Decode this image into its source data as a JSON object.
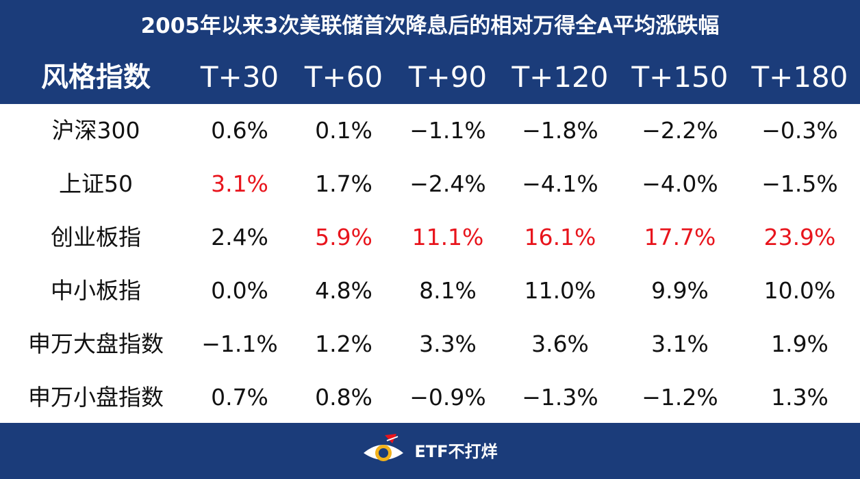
{
  "title": "2005年以来3次美联储首次降息后的相对万得全A平均涨跌幅",
  "table": {
    "columns": [
      "风格指数",
      "T+30",
      "T+60",
      "T+90",
      "T+120",
      "T+150",
      "T+180"
    ],
    "rows": [
      {
        "name": "沪深300",
        "values": [
          "0.6%",
          "0.1%",
          "−1.1%",
          "−1.8%",
          "−2.2%",
          "−0.3%"
        ],
        "highlight": [
          false,
          false,
          false,
          false,
          false,
          false
        ]
      },
      {
        "name": "上证50",
        "values": [
          "3.1%",
          "1.7%",
          "−2.4%",
          "−4.1%",
          "−4.0%",
          "−1.5%"
        ],
        "highlight": [
          true,
          false,
          false,
          false,
          false,
          false
        ]
      },
      {
        "name": "创业板指",
        "values": [
          "2.4%",
          "5.9%",
          "11.1%",
          "16.1%",
          "17.7%",
          "23.9%"
        ],
        "highlight": [
          false,
          true,
          true,
          true,
          true,
          true
        ]
      },
      {
        "name": "中小板指",
        "values": [
          "0.0%",
          "4.8%",
          "8.1%",
          "11.0%",
          "9.9%",
          "10.0%"
        ],
        "highlight": [
          false,
          false,
          false,
          false,
          false,
          false
        ]
      },
      {
        "name": "申万大盘指数",
        "values": [
          "−1.1%",
          "1.2%",
          "3.3%",
          "3.6%",
          "3.1%",
          "1.9%"
        ],
        "highlight": [
          false,
          false,
          false,
          false,
          false,
          false
        ]
      },
      {
        "name": "申万小盘指数",
        "values": [
          "0.7%",
          "0.8%",
          "−0.9%",
          "−1.3%",
          "−1.2%",
          "1.3%"
        ],
        "highlight": [
          false,
          false,
          false,
          false,
          false,
          false
        ]
      }
    ]
  },
  "footer": {
    "brand": "ETF不打烊",
    "logo_icon": "eye-logo-icon"
  },
  "colors": {
    "header_bg": "#1b3c7a",
    "highlight": "#e8141c",
    "text": "#111111"
  }
}
